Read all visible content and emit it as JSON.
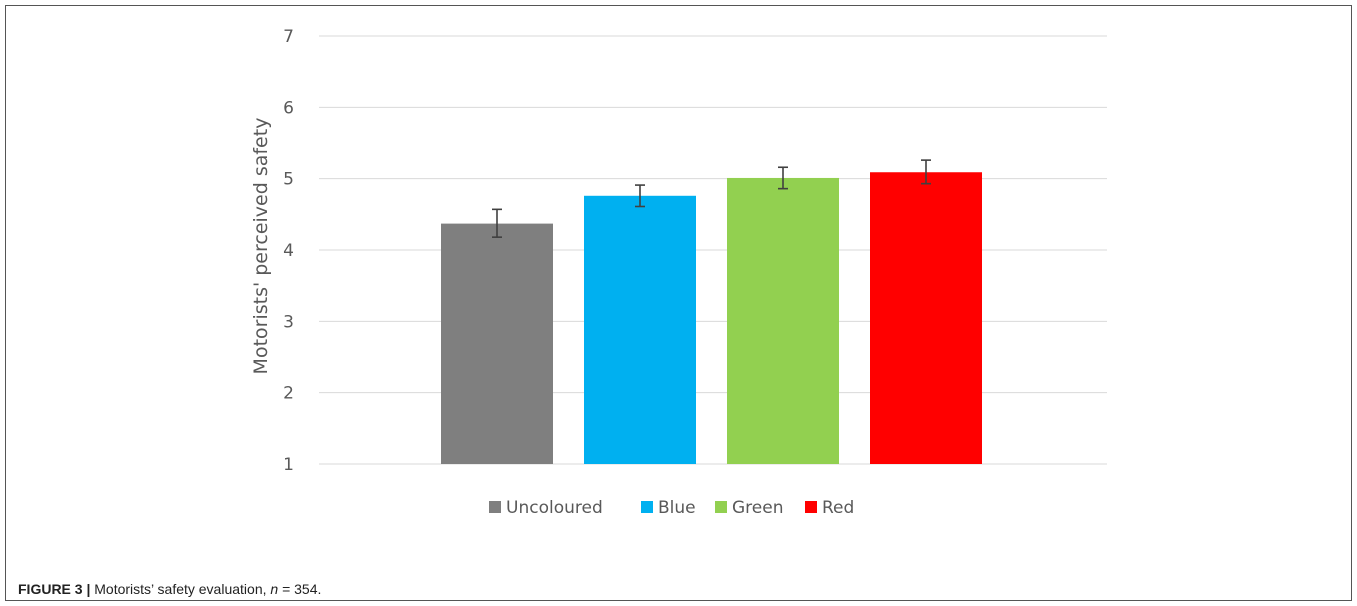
{
  "chart_data": {
    "type": "bar",
    "categories": [
      "Uncoloured",
      "Blue",
      "Green",
      "Red"
    ],
    "values": [
      4.37,
      4.76,
      5.01,
      5.09
    ],
    "error_low": [
      4.18,
      4.61,
      4.86,
      4.93
    ],
    "error_high": [
      4.57,
      4.91,
      5.16,
      5.26
    ],
    "colors": [
      "#7f7f7f",
      "#00b0f0",
      "#92d050",
      "#ff0000"
    ],
    "title": "",
    "xlabel": "",
    "ylabel": "Motorists' perceived safety",
    "ylim": [
      1,
      7
    ],
    "yticks": [
      "1",
      "2",
      "3",
      "4",
      "5",
      "6",
      "7"
    ],
    "grid": true,
    "legend_position": "bottom"
  },
  "caption": {
    "label": "FIGURE 3 |",
    "text_before": " Motorists’ safety evaluation, ",
    "italic": "n",
    "text_after": " = 354."
  }
}
